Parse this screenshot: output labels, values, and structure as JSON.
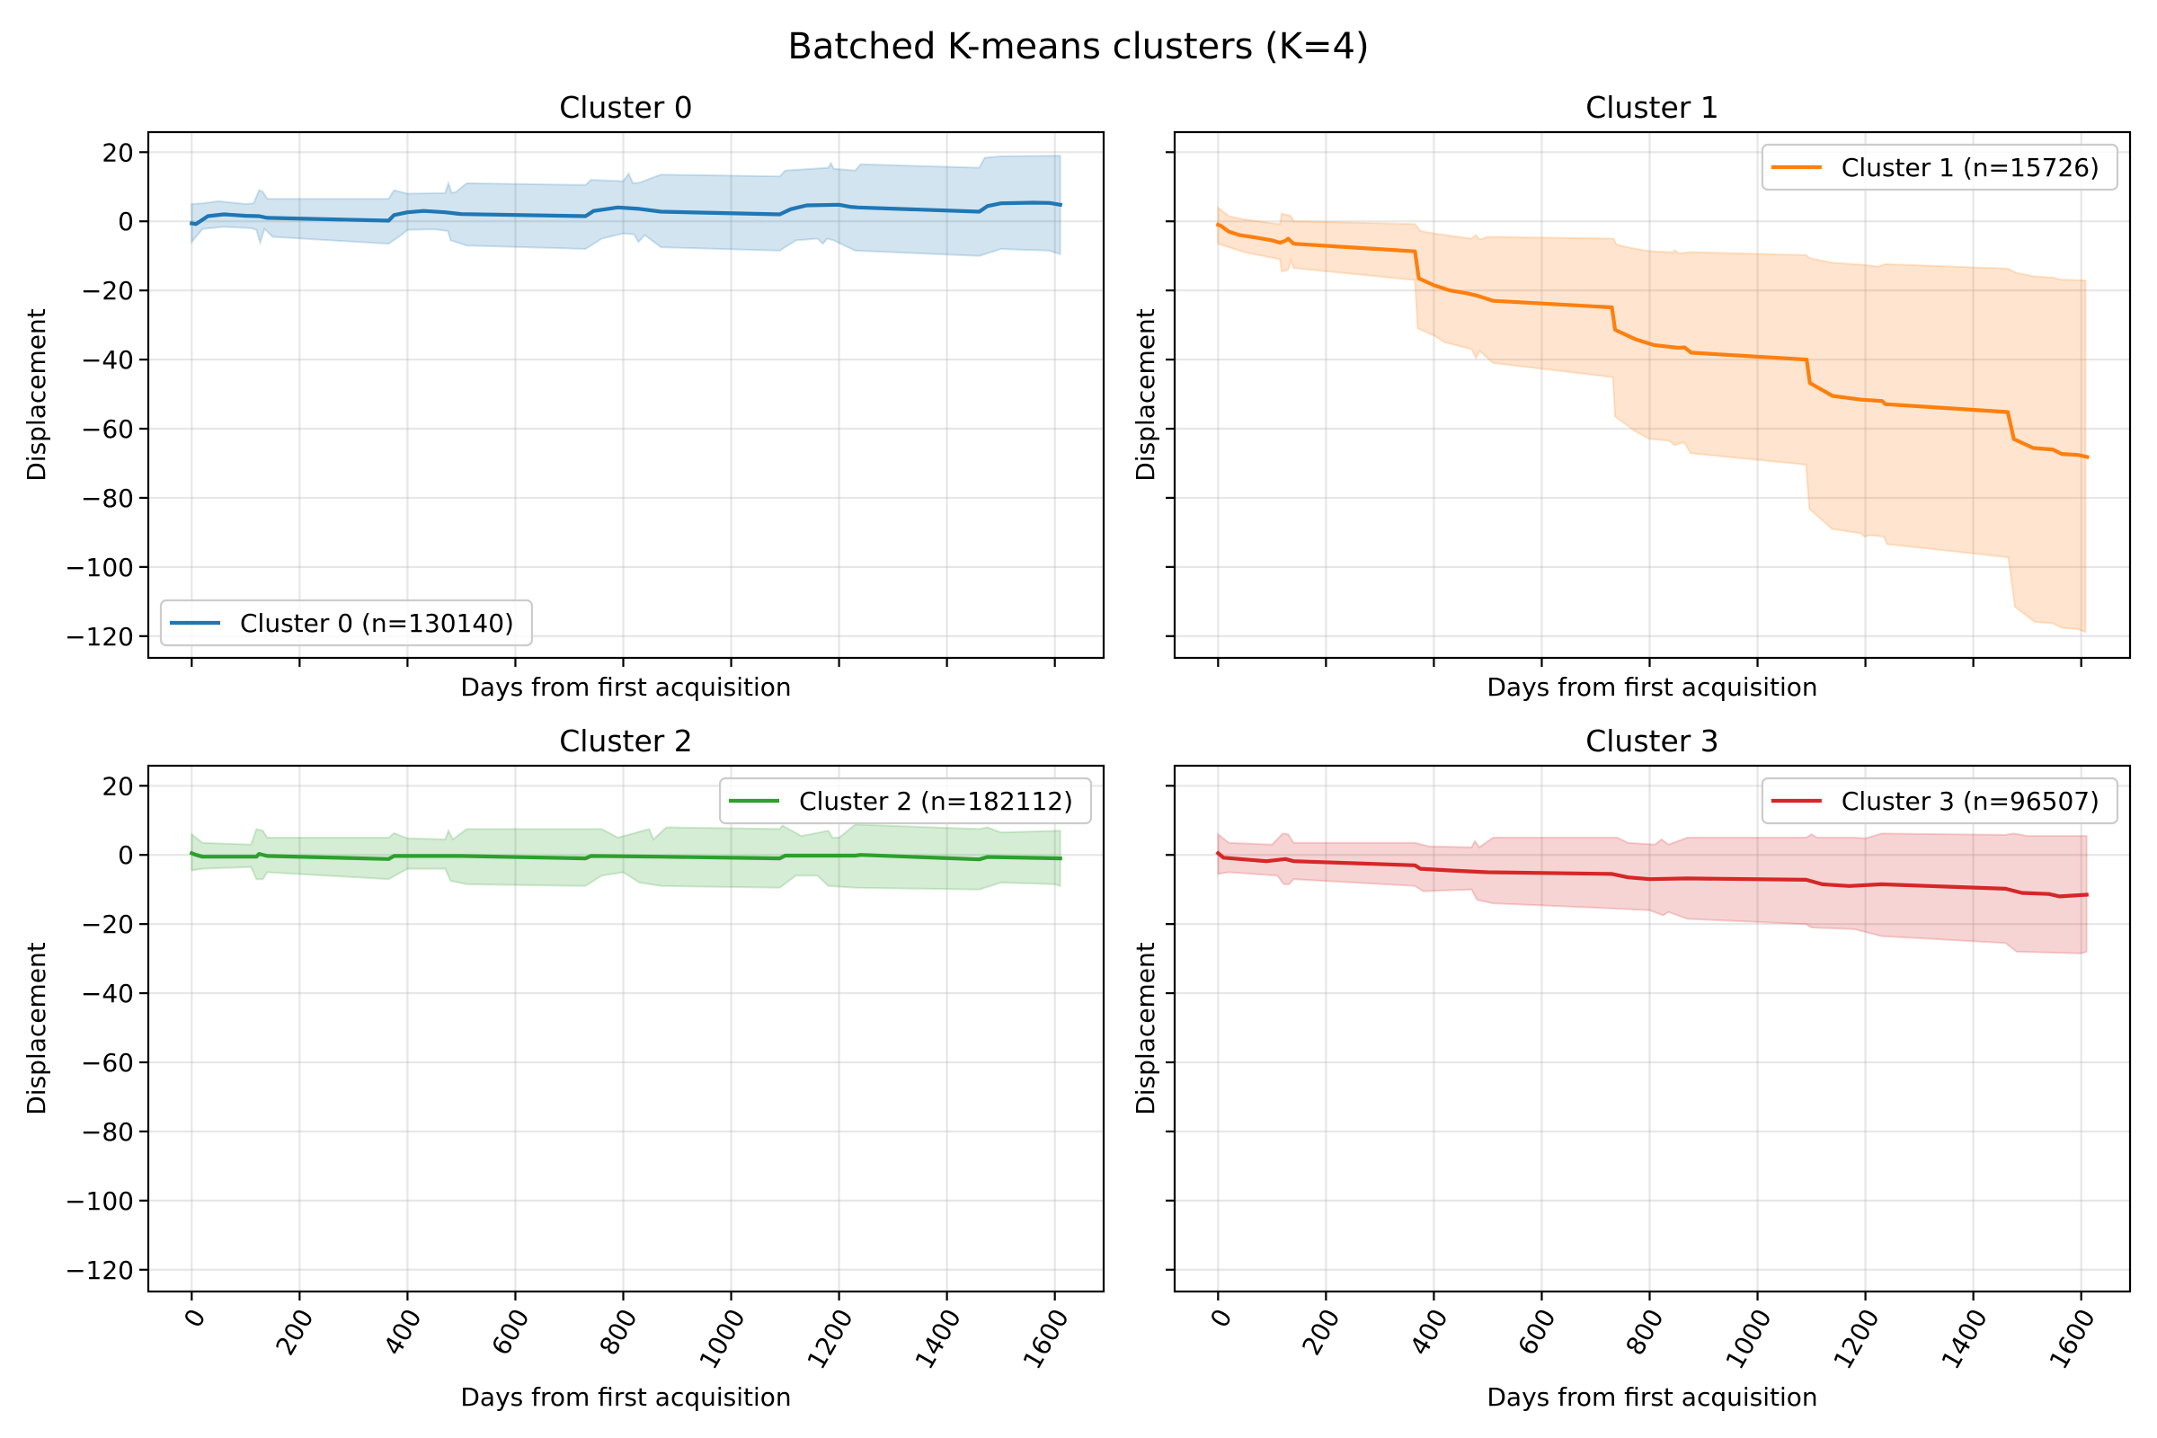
{
  "chart_data": {
    "type": "line",
    "title": "Batched K-means clusters (K=4)",
    "layout": "2x2 grid, shared x and y axes",
    "shared_xlim": [
      -80.5,
      1690.5
    ],
    "shared_ylim": [
      -126.3,
      25.8
    ],
    "x_ticks": [
      0,
      200,
      400,
      600,
      800,
      1000,
      1200,
      1400,
      1600
    ],
    "x_tick_labels": [
      "0",
      "200",
      "400",
      "600",
      "800",
      "1000",
      "1200",
      "1400",
      "1600"
    ],
    "x_tick_rotation_deg": 60,
    "y_ticks": [
      20,
      0,
      -20,
      -40,
      -60,
      -80,
      -100,
      -120
    ],
    "y_tick_labels": [
      "20",
      "0",
      "−20",
      "−40",
      "−60",
      "−80",
      "−100",
      "−120"
    ],
    "grid": true,
    "panels": [
      {
        "title": "Cluster 0",
        "xlabel": "Days from first acquisition",
        "ylabel": "Displacement",
        "show_x_tick_labels": false,
        "show_y_tick_labels": true,
        "legend_label": "Cluster 0 (n=130140)",
        "legend_position": "lower-left",
        "color": "#1f77b4",
        "band_color": "#1f77b4",
        "band_alpha": 0.2,
        "mean": {
          "x": [
            0,
            8,
            30,
            60,
            100,
            125,
            140,
            365,
            375,
            400,
            430,
            470,
            500,
            730,
            745,
            790,
            830,
            870,
            1090,
            1110,
            1140,
            1200,
            1220,
            1235,
            1460,
            1475,
            1500,
            1560,
            1590,
            1610
          ],
          "y": [
            -0.6,
            -0.8,
            1.5,
            2.0,
            1.6,
            1.5,
            1.0,
            0.2,
            1.8,
            2.6,
            3.0,
            2.6,
            2.1,
            1.5,
            3.0,
            4.0,
            3.6,
            2.8,
            2.0,
            3.5,
            4.6,
            4.8,
            4.2,
            4.0,
            2.8,
            4.4,
            5.2,
            5.4,
            5.3,
            4.8
          ]
        },
        "band_upper": {
          "x": [
            0,
            20,
            50,
            100,
            115,
            125,
            132,
            140,
            365,
            375,
            400,
            470,
            476,
            482,
            490,
            510,
            730,
            740,
            800,
            810,
            818,
            830,
            870,
            1090,
            1100,
            1180,
            1185,
            1190,
            1230,
            1240,
            1460,
            1470,
            1500,
            1610
          ],
          "y": [
            5.0,
            5.2,
            5.8,
            5.0,
            5.2,
            9.0,
            8.5,
            6.5,
            6.5,
            9.0,
            8.0,
            8.2,
            11.0,
            8.2,
            8.5,
            11.0,
            10.5,
            12.0,
            11.6,
            13.8,
            11.0,
            11.2,
            13.5,
            13.0,
            14.7,
            15.5,
            16.8,
            15.2,
            14.7,
            16.5,
            15.5,
            18.4,
            18.8,
            19.0
          ]
        },
        "band_lower": {
          "x": [
            0,
            20,
            60,
            110,
            120,
            127,
            135,
            150,
            365,
            390,
            400,
            450,
            475,
            480,
            510,
            730,
            760,
            800,
            820,
            828,
            840,
            870,
            1090,
            1120,
            1160,
            1170,
            1178,
            1190,
            1230,
            1460,
            1500,
            1590,
            1610
          ],
          "y": [
            -6.0,
            -2.2,
            -1.6,
            -2.0,
            -2.5,
            -6.2,
            -2.2,
            -4.5,
            -6.5,
            -3.8,
            -2.5,
            -2.3,
            -2.8,
            -5.5,
            -7.0,
            -8.0,
            -5.0,
            -3.5,
            -3.8,
            -6.0,
            -4.0,
            -7.5,
            -8.5,
            -5.5,
            -5.0,
            -6.5,
            -5.0,
            -5.5,
            -8.5,
            -10.0,
            -8.0,
            -8.5,
            -9.5
          ]
        }
      },
      {
        "title": "Cluster 1",
        "xlabel": "Days from first acquisition",
        "ylabel": "Displacement",
        "show_x_tick_labels": false,
        "show_y_tick_labels": false,
        "legend_label": "Cluster 1 (n=15726)",
        "legend_position": "upper-right",
        "color": "#ff7f0e",
        "band_color": "#ff7f0e",
        "band_alpha": 0.2,
        "mean": {
          "x": [
            0,
            5,
            20,
            40,
            70,
            100,
            115,
            125,
            130,
            140,
            365,
            372,
            400,
            430,
            460,
            480,
            510,
            730,
            736,
            775,
            808,
            853,
            865,
            877,
            1091,
            1097,
            1139,
            1192,
            1231,
            1237,
            1464,
            1475,
            1511,
            1547,
            1564,
            1594,
            1611
          ],
          "y": [
            -1.0,
            -1.3,
            -3.0,
            -4.0,
            -4.7,
            -5.5,
            -6.2,
            -5.6,
            -5.0,
            -6.5,
            -8.7,
            -16.5,
            -18.5,
            -20.0,
            -20.8,
            -21.5,
            -23.0,
            -24.9,
            -31.4,
            -34.2,
            -35.8,
            -36.6,
            -36.5,
            -38.0,
            -40.0,
            -46.8,
            -50.5,
            -51.6,
            -52.0,
            -52.9,
            -55.2,
            -63.0,
            -65.6,
            -66.0,
            -67.3,
            -67.6,
            -68.2
          ]
        },
        "band_upper": {
          "x": [
            0,
            20,
            50,
            100,
            115,
            118,
            135,
            140,
            365,
            375,
            400,
            470,
            478,
            485,
            500,
            733,
            739,
            775,
            799,
            843,
            846,
            855,
            876,
            1090,
            1096,
            1138,
            1198,
            1224,
            1237,
            1464,
            1478,
            1511,
            1547,
            1564,
            1608
          ],
          "y": [
            3.9,
            1.5,
            0.5,
            -0.5,
            -0.8,
            2.2,
            1.6,
            0.0,
            -0.8,
            -2.8,
            -3.5,
            -5.0,
            -4.0,
            -5.3,
            -4.5,
            -5.0,
            -6.8,
            -8.0,
            -8.6,
            -9.0,
            -8.4,
            -9.3,
            -8.9,
            -9.8,
            -10.6,
            -12.0,
            -12.6,
            -13.1,
            -12.4,
            -13.7,
            -14.8,
            -15.9,
            -16.3,
            -16.9,
            -17.1
          ]
        },
        "band_lower": {
          "x": [
            0,
            20,
            50,
            115,
            118,
            130,
            135,
            140,
            365,
            370,
            400,
            420,
            470,
            478,
            485,
            510,
            732,
            736,
            775,
            799,
            837,
            846,
            864,
            876,
            1090,
            1096,
            1138,
            1192,
            1198,
            1210,
            1234,
            1240,
            1465,
            1477,
            1514,
            1547,
            1564,
            1594,
            1608
          ],
          "y": [
            -6.5,
            -7.5,
            -9.0,
            -11.0,
            -14.5,
            -14.0,
            -11.3,
            -13.5,
            -17.0,
            -31.0,
            -33.0,
            -35.0,
            -37.0,
            -39.5,
            -37.5,
            -41.0,
            -45.1,
            -56.5,
            -60.9,
            -62.9,
            -63.5,
            -64.8,
            -63.9,
            -67.1,
            -70.4,
            -83.2,
            -89.0,
            -90.3,
            -91.2,
            -90.8,
            -91.2,
            -93.4,
            -97.2,
            -111.5,
            -115.9,
            -116.3,
            -117.6,
            -118.0,
            -118.8
          ]
        }
      },
      {
        "title": "Cluster 2",
        "xlabel": "Days from first acquisition",
        "ylabel": "Displacement",
        "show_x_tick_labels": true,
        "show_y_tick_labels": true,
        "legend_label": "Cluster 2 (n=182112)",
        "legend_position": "upper-right",
        "color": "#2ca02c",
        "band_color": "#2ca02c",
        "band_alpha": 0.2,
        "mean": {
          "x": [
            0,
            8,
            20,
            120,
            125,
            140,
            365,
            375,
            500,
            730,
            740,
            870,
            1090,
            1100,
            1230,
            1240,
            1460,
            1475,
            1610
          ],
          "y": [
            0.5,
            0.0,
            -0.5,
            -0.5,
            0.3,
            -0.3,
            -1.2,
            -0.3,
            -0.3,
            -1.0,
            -0.3,
            -0.5,
            -1.0,
            -0.2,
            -0.2,
            0.0,
            -1.3,
            -0.6,
            -1.0
          ]
        },
        "band_upper": {
          "x": [
            0,
            20,
            110,
            120,
            132,
            140,
            365,
            375,
            400,
            470,
            476,
            484,
            510,
            730,
            760,
            790,
            848,
            856,
            880,
            1090,
            1095,
            1130,
            1180,
            1188,
            1200,
            1230,
            1460,
            1475,
            1500,
            1610
          ],
          "y": [
            6.0,
            3.5,
            3.0,
            7.5,
            7.0,
            5.0,
            5.0,
            6.3,
            4.8,
            4.5,
            7.0,
            4.5,
            7.5,
            7.5,
            7.5,
            5.0,
            7.5,
            4.5,
            8.0,
            7.5,
            8.5,
            5.5,
            7.0,
            5.0,
            5.0,
            8.8,
            7.5,
            8.0,
            6.5,
            7.0
          ]
        },
        "band_lower": {
          "x": [
            0,
            20,
            110,
            120,
            132,
            140,
            365,
            400,
            470,
            480,
            510,
            730,
            760,
            800,
            830,
            870,
            1090,
            1120,
            1160,
            1180,
            1230,
            1460,
            1500,
            1600,
            1610
          ],
          "y": [
            -4.5,
            -4.0,
            -3.5,
            -7.0,
            -7.0,
            -5.0,
            -7.0,
            -4.0,
            -4.0,
            -7.5,
            -8.5,
            -9.0,
            -6.0,
            -5.0,
            -8.0,
            -9.0,
            -9.5,
            -6.0,
            -6.0,
            -9.0,
            -9.5,
            -10.0,
            -8.0,
            -8.5,
            -9.0
          ]
        }
      },
      {
        "title": "Cluster 3",
        "xlabel": "Days from first acquisition",
        "ylabel": "Displacement",
        "show_x_tick_labels": true,
        "show_y_tick_labels": false,
        "legend_label": "Cluster 3 (n=96507)",
        "legend_position": "upper-right",
        "color": "#d62728",
        "band_color": "#d62728",
        "band_alpha": 0.2,
        "mean": {
          "x": [
            0,
            10,
            40,
            90,
            125,
            140,
            365,
            375,
            430,
            500,
            730,
            760,
            800,
            870,
            1090,
            1120,
            1170,
            1230,
            1460,
            1490,
            1540,
            1560,
            1610
          ],
          "y": [
            0.5,
            -0.8,
            -1.2,
            -1.8,
            -1.2,
            -1.8,
            -3.0,
            -4.0,
            -4.5,
            -5.0,
            -5.5,
            -6.5,
            -7.0,
            -6.8,
            -7.2,
            -8.5,
            -9.0,
            -8.5,
            -9.8,
            -11.0,
            -11.3,
            -12.0,
            -11.5
          ]
        },
        "band_upper": {
          "x": [
            0,
            20,
            100,
            120,
            130,
            140,
            365,
            390,
            470,
            476,
            484,
            510,
            740,
            760,
            810,
            822,
            835,
            870,
            1090,
            1100,
            1110,
            1180,
            1200,
            1230,
            1460,
            1475,
            1500,
            1610
          ],
          "y": [
            6.0,
            3.5,
            3.0,
            6.2,
            6.0,
            3.5,
            3.5,
            2.5,
            2.2,
            4.0,
            2.2,
            5.0,
            5.0,
            3.5,
            3.0,
            4.5,
            3.0,
            5.0,
            5.0,
            6.0,
            5.0,
            5.0,
            4.8,
            6.2,
            5.8,
            6.2,
            5.5,
            5.5
          ]
        },
        "band_lower": {
          "x": [
            0,
            20,
            110,
            122,
            132,
            140,
            365,
            380,
            470,
            480,
            510,
            730,
            800,
            825,
            835,
            870,
            1090,
            1100,
            1180,
            1230,
            1460,
            1480,
            1600,
            1610
          ],
          "y": [
            -5.5,
            -5.0,
            -6.0,
            -8.5,
            -8.5,
            -7.0,
            -9.0,
            -10.5,
            -10.0,
            -13.0,
            -14.0,
            -15.5,
            -16.0,
            -17.5,
            -16.5,
            -18.5,
            -20.0,
            -21.0,
            -21.5,
            -23.5,
            -25.5,
            -28.0,
            -28.5,
            -28.0
          ]
        }
      }
    ]
  }
}
